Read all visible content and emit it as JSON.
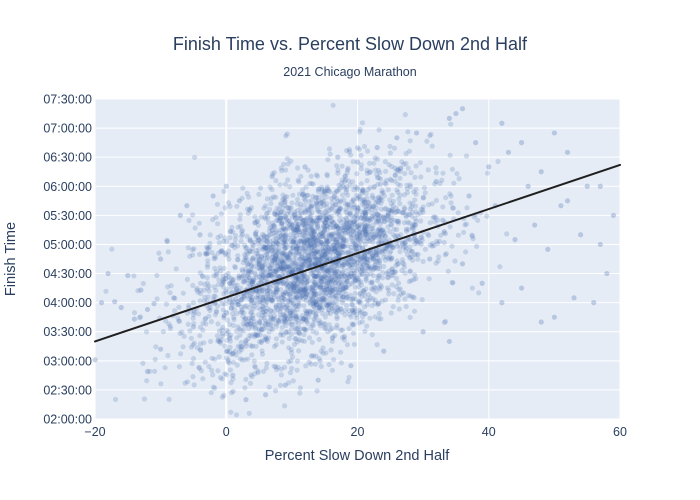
{
  "chart_data": {
    "type": "scatter",
    "title": "Finish Time vs. Percent Slow Down 2nd Half",
    "subtitle": "2021 Chicago Marathon",
    "xlabel": "Percent Slow Down 2nd Half",
    "ylabel": "Finish Time",
    "xlim": [
      -20,
      60
    ],
    "ylim": [
      "02:00:00",
      "07:30:00"
    ],
    "x_ticks": [
      -20,
      0,
      20,
      40,
      60
    ],
    "x_tick_labels": [
      "−20",
      "0",
      "20",
      "40",
      "60"
    ],
    "y_ticks": [
      "02:00:00",
      "02:30:00",
      "03:00:00",
      "03:30:00",
      "04:00:00",
      "04:30:00",
      "05:00:00",
      "05:30:00",
      "06:00:00",
      "06:30:00",
      "07:00:00",
      "07:30:00"
    ],
    "grid": true,
    "marker_color": "#4c72b0",
    "trendline_color": "#1f1f1f",
    "trendline": {
      "x": [
        -20,
        60
      ],
      "y": [
        "03:20:00",
        "06:22:00"
      ]
    },
    "points": [
      [
        -20,
        "03:01:00"
      ],
      [
        -19,
        "04:00:00"
      ],
      [
        -18,
        "04:30:00"
      ],
      [
        -17,
        "04:01:00"
      ],
      [
        -16,
        "03:55:00"
      ],
      [
        -15,
        "04:28:00"
      ],
      [
        -14,
        "03:43:00"
      ],
      [
        -13,
        "04:13:00"
      ],
      [
        -12,
        "03:53:00"
      ],
      [
        -11,
        "03:59:00"
      ],
      [
        -12,
        "02:49:00"
      ],
      [
        -10,
        "03:12:00"
      ],
      [
        -10,
        "04:45:00"
      ],
      [
        -9,
        "05:03:00"
      ],
      [
        -8,
        "04:05:00"
      ],
      [
        -7,
        "05:30:00"
      ],
      [
        -6,
        "05:40:00"
      ],
      [
        -5,
        "03:35:00"
      ],
      [
        -4,
        "05:10:00"
      ],
      [
        -3,
        "04:50:00"
      ],
      [
        -2,
        "05:50:00"
      ],
      [
        -1,
        "03:20:00"
      ],
      [
        0,
        "06:00:00"
      ],
      [
        1,
        "02:45:00"
      ],
      [
        2,
        "05:45:00"
      ],
      [
        3,
        "02:20:00"
      ],
      [
        4,
        "03:15:00"
      ],
      [
        5,
        "04:40:00"
      ],
      [
        6,
        "02:25:00"
      ],
      [
        7,
        "06:10:00"
      ],
      [
        8,
        "03:40:00"
      ],
      [
        9,
        "02:35:00"
      ],
      [
        10,
        "05:20:00"
      ],
      [
        11,
        "04:25:00"
      ],
      [
        12,
        "06:20:00"
      ],
      [
        13,
        "03:05:00"
      ],
      [
        14,
        "02:40:00"
      ],
      [
        15,
        "05:55:00"
      ],
      [
        16,
        "04:55:00"
      ],
      [
        17,
        "06:30:00"
      ],
      [
        18,
        "03:25:00"
      ],
      [
        19,
        "02:55:00"
      ],
      [
        20,
        "06:25:00"
      ],
      [
        21,
        "05:15:00"
      ],
      [
        22,
        "04:35:00"
      ],
      [
        23,
        "06:40:00"
      ],
      [
        24,
        "03:10:00"
      ],
      [
        25,
        "05:35:00"
      ],
      [
        26,
        "06:50:00"
      ],
      [
        27,
        "04:10:00"
      ],
      [
        28,
        "05:05:00"
      ],
      [
        29,
        "06:55:00"
      ],
      [
        30,
        "03:30:00"
      ],
      [
        31,
        "04:45:00"
      ],
      [
        32,
        "06:05:00"
      ],
      [
        33,
        "05:25:00"
      ],
      [
        34,
        "03:20:00"
      ],
      [
        35,
        "07:15:00"
      ],
      [
        36,
        "04:40:00"
      ],
      [
        37,
        "05:50:00"
      ],
      [
        38,
        "06:45:00"
      ],
      [
        39,
        "04:20:00"
      ],
      [
        40,
        "06:20:00"
      ],
      [
        41,
        "05:40:00"
      ],
      [
        42,
        "04:00:00"
      ],
      [
        43,
        "06:35:00"
      ],
      [
        44,
        "05:05:00"
      ],
      [
        45,
        "04:15:00"
      ],
      [
        46,
        "06:00:00"
      ],
      [
        47,
        "05:20:00"
      ],
      [
        48,
        "06:15:00"
      ],
      [
        49,
        "04:55:00"
      ],
      [
        50,
        "03:45:00"
      ],
      [
        51,
        "05:40:00"
      ],
      [
        52,
        "06:35:00"
      ],
      [
        53,
        "04:05:00"
      ],
      [
        54,
        "05:10:00"
      ],
      [
        55,
        "06:00:00"
      ],
      [
        56,
        "04:00:00"
      ],
      [
        57,
        "05:00:00"
      ],
      [
        58,
        "04:30:00"
      ],
      [
        59,
        "05:30:00"
      ],
      [
        57,
        "06:00:00"
      ],
      [
        48,
        "03:40:00"
      ],
      [
        52,
        "05:45:00"
      ],
      [
        36,
        "07:20:00"
      ],
      [
        34,
        "07:10:00"
      ],
      [
        42,
        "07:05:00"
      ],
      [
        45,
        "06:45:00"
      ],
      [
        50,
        "06:55:00"
      ]
    ]
  }
}
